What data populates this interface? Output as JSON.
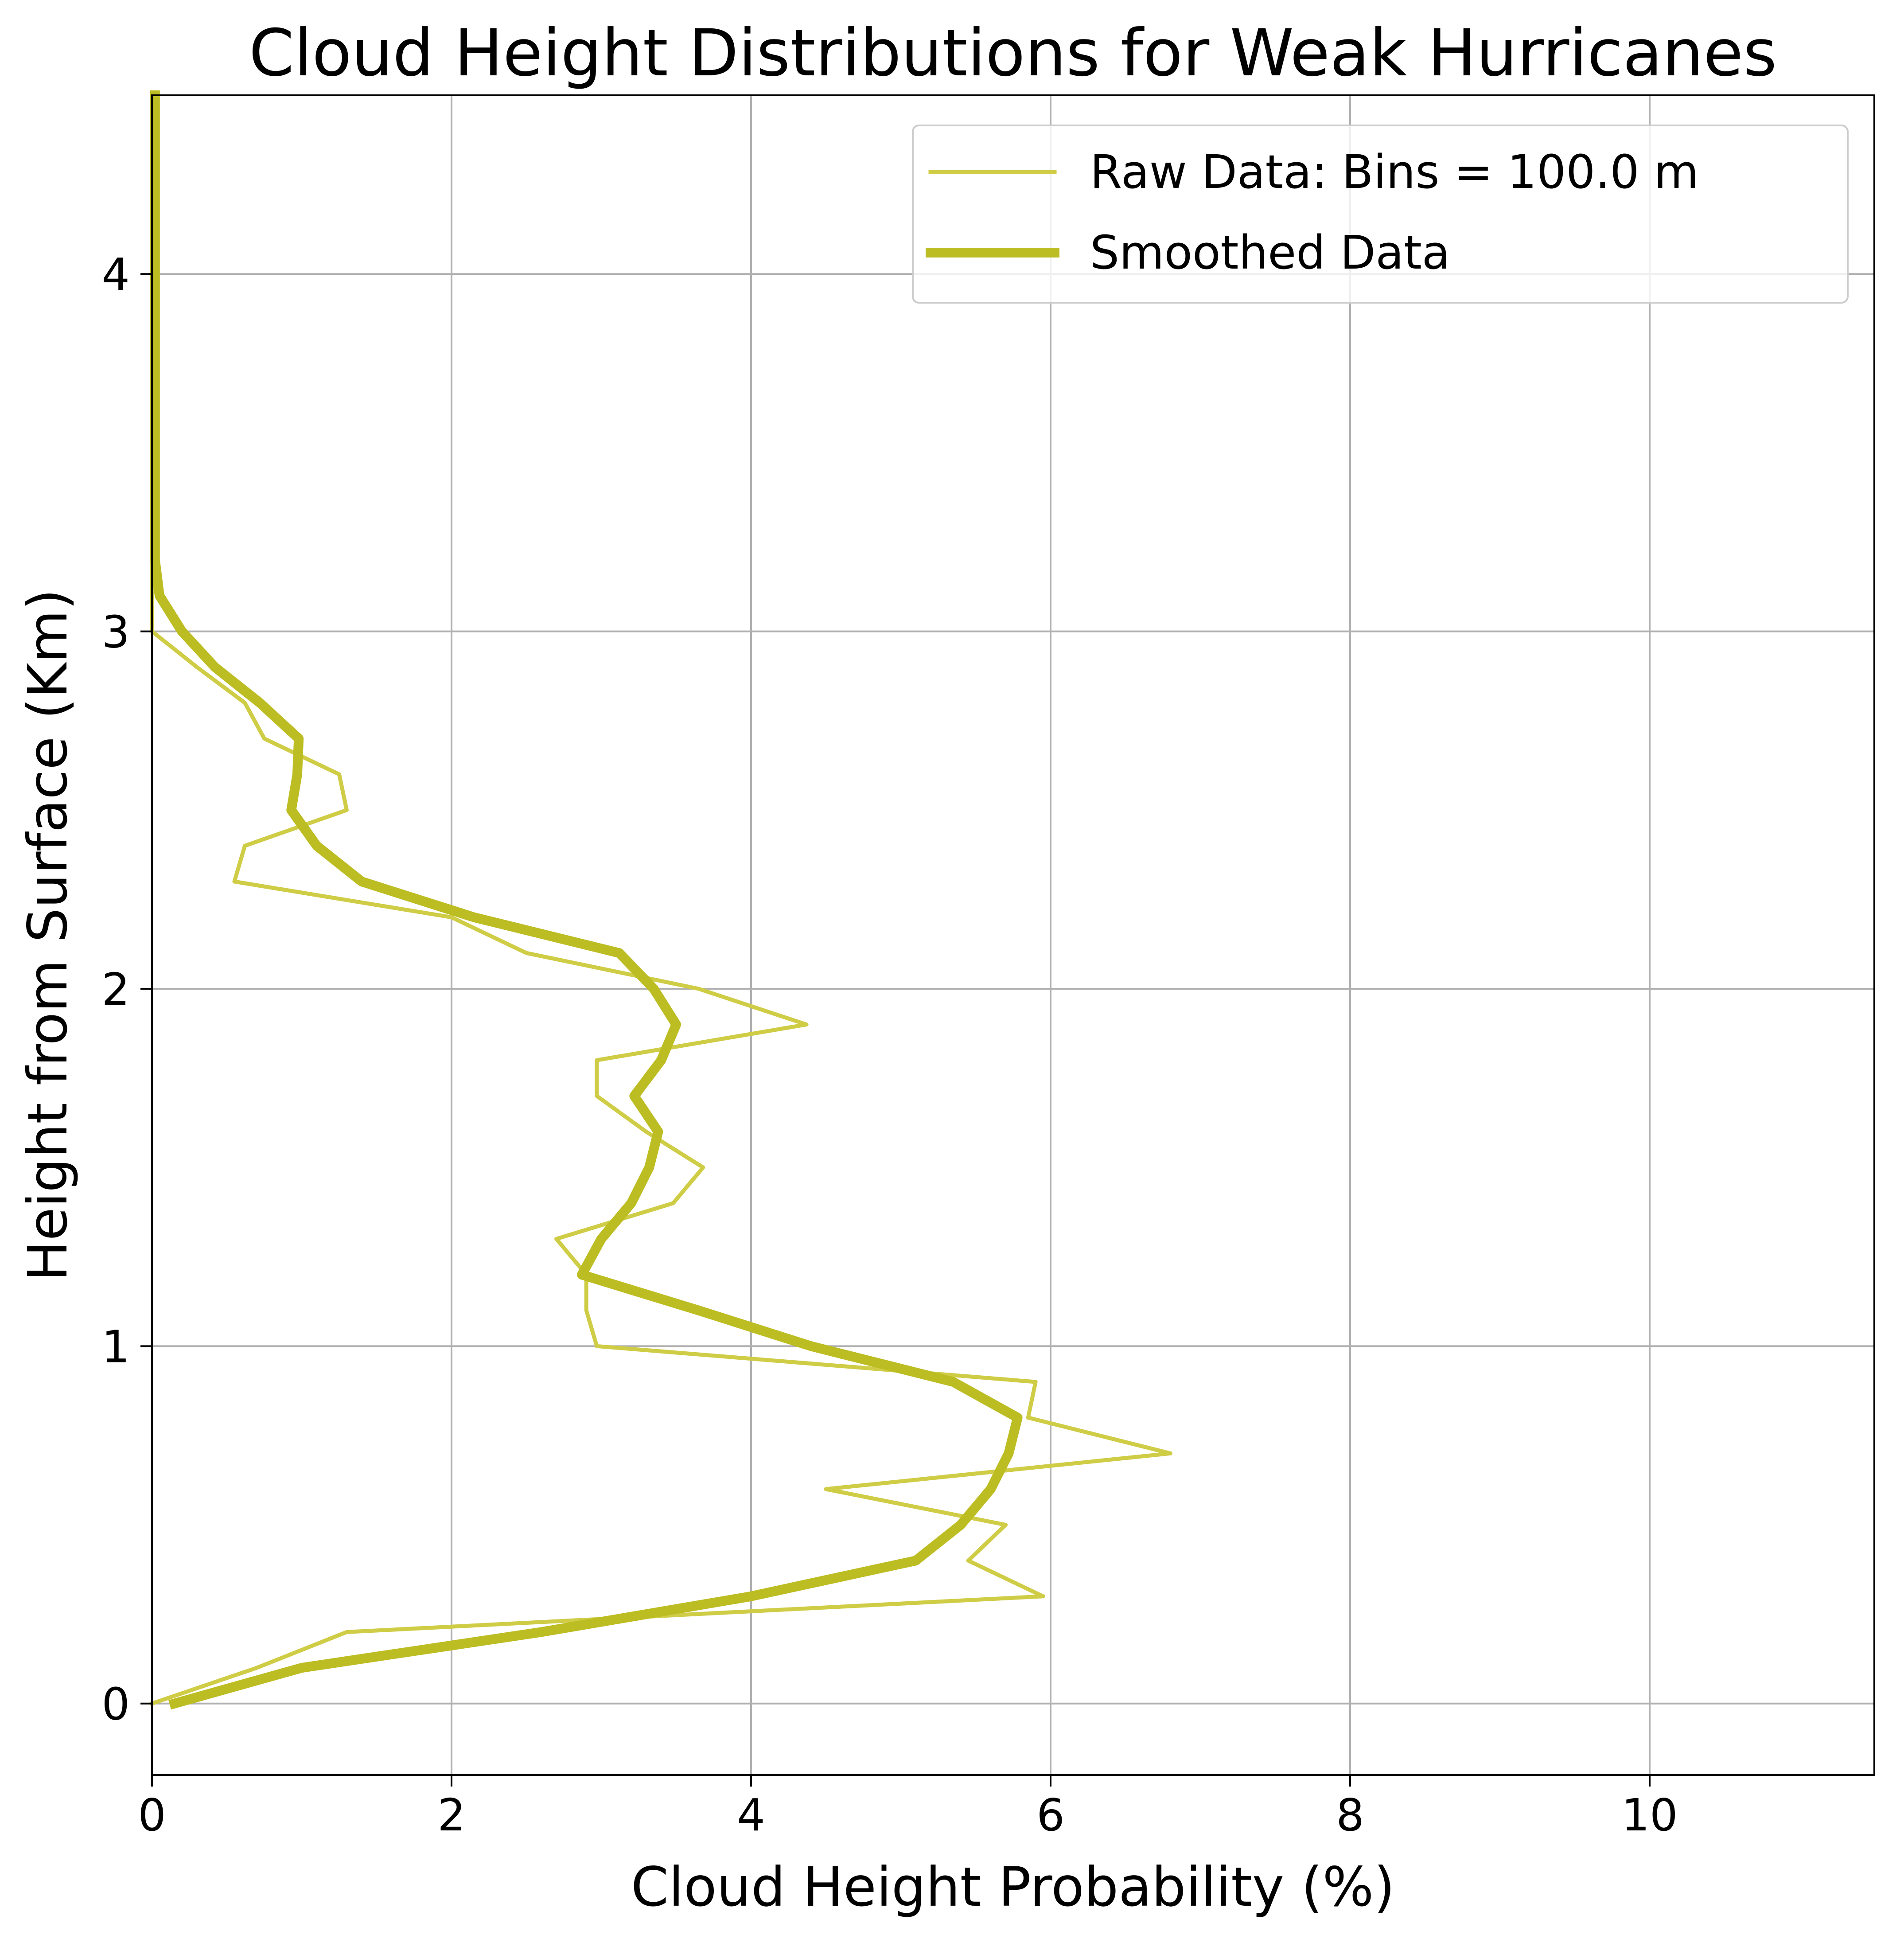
{
  "chart_data": {
    "type": "line",
    "title": "Cloud Height Distributions for Weak Hurricanes",
    "xlabel": "Cloud Height Probability (%)",
    "ylabel": "Height from Surface (Km)",
    "xlim": [
      0,
      11.5
    ],
    "ylim": [
      -0.2,
      4.5
    ],
    "xticks": [
      0,
      2,
      4,
      6,
      8,
      10
    ],
    "yticks": [
      0,
      1,
      2,
      3,
      4
    ],
    "grid": true,
    "legend_position": "top-right",
    "series": [
      {
        "name": "Raw Data: Bins = 100.0 m",
        "color": "#cfcc46",
        "x": [
          0.0,
          0.7,
          1.3,
          5.95,
          5.45,
          5.7,
          4.5,
          6.8,
          5.85,
          5.9,
          2.97,
          2.9,
          2.9,
          2.7,
          3.48,
          3.68,
          3.3,
          2.97,
          2.97,
          4.37,
          3.65,
          2.5,
          2.0,
          0.55,
          0.62,
          1.3,
          1.25,
          0.75,
          0.62,
          0.3,
          0.0,
          0.0,
          0.0,
          0.0,
          0.0,
          0.0,
          0.0,
          0.0,
          0.0,
          0.0,
          0.0,
          0.0,
          0.0,
          0.0,
          0.0,
          0.0
        ],
        "y": [
          0.0,
          0.1,
          0.2,
          0.3,
          0.4,
          0.5,
          0.6,
          0.7,
          0.8,
          0.9,
          1.0,
          1.1,
          1.2,
          1.3,
          1.4,
          1.5,
          1.6,
          1.7,
          1.8,
          1.9,
          2.0,
          2.1,
          2.2,
          2.3,
          2.4,
          2.5,
          2.6,
          2.7,
          2.8,
          2.9,
          3.0,
          3.1,
          3.2,
          3.3,
          3.4,
          3.5,
          3.6,
          3.7,
          3.8,
          3.9,
          4.0,
          4.1,
          4.2,
          4.3,
          4.4,
          4.5
        ]
      },
      {
        "name": "Smoothed Data",
        "color": "#bcbd22",
        "x": [
          0.15,
          1.0,
          2.6,
          4.0,
          5.1,
          5.4,
          5.6,
          5.72,
          5.78,
          5.35,
          4.4,
          3.65,
          2.87,
          3.0,
          3.2,
          3.32,
          3.38,
          3.22,
          3.4,
          3.5,
          3.35,
          3.12,
          2.15,
          1.4,
          1.1,
          0.93,
          0.97,
          0.98,
          0.72,
          0.42,
          0.2,
          0.05,
          0.02,
          0.02,
          0.02,
          0.02,
          0.02,
          0.02,
          0.02,
          0.02,
          0.02,
          0.02,
          0.02,
          0.02,
          0.02,
          0.02
        ],
        "y": [
          0.0,
          0.1,
          0.2,
          0.3,
          0.4,
          0.5,
          0.6,
          0.7,
          0.8,
          0.9,
          1.0,
          1.1,
          1.2,
          1.3,
          1.4,
          1.5,
          1.6,
          1.7,
          1.8,
          1.9,
          2.0,
          2.1,
          2.2,
          2.3,
          2.4,
          2.5,
          2.6,
          2.7,
          2.8,
          2.9,
          3.0,
          3.1,
          3.2,
          3.3,
          3.4,
          3.5,
          3.6,
          3.7,
          3.8,
          3.9,
          4.0,
          4.1,
          4.2,
          4.3,
          4.4,
          4.5
        ]
      }
    ]
  }
}
